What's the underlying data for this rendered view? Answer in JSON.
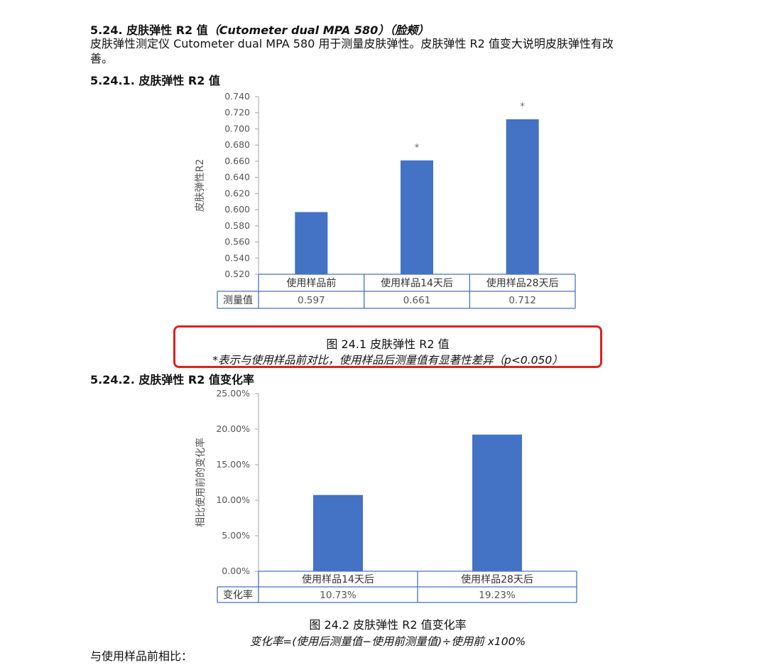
{
  "section": {
    "number": "5.24.",
    "title_cn": "皮肤弹性 R2 值",
    "title_instrument": "（Cutometer dual MPA 580）",
    "title_area": "（脸颊）"
  },
  "intro": {
    "line1": "皮肤弹性测定仪 Cutometer dual MPA 580 用于测量皮肤弹性。皮肤弹性 R2 值变大说明皮肤弹性有改",
    "line2": "善。"
  },
  "subsection1": {
    "number": "5.24.1.",
    "title": "皮肤弹性 R2 值"
  },
  "subsection2": {
    "number": "5.24.2.",
    "title": "皮肤弹性 R2 值变化率"
  },
  "figure1": {
    "caption": "图 24.1 皮肤弹性 R2 值",
    "note": "*表示与使用样品前对比，使用样品后测量值有显著性差异（p<0.050）"
  },
  "figure2": {
    "caption": "图 24.2 皮肤弹性 R2 值变化率",
    "formula": "变化率=(使用后测量值−使用前测量值)÷使用前 x100%"
  },
  "footer_text": "与使用样品前相比：",
  "colors": {
    "bar": "#4472c4",
    "highlight_box": "#e02020",
    "axis": "#a6a6a6",
    "table_border": "#4472c4"
  },
  "chart_data": [
    {
      "type": "bar",
      "ylabel": "皮肤弹性R2",
      "ylim": [
        0.52,
        0.74
      ],
      "ytick_step": 0.02,
      "ytick_labels": [
        "0.520",
        "0.540",
        "0.560",
        "0.580",
        "0.600",
        "0.620",
        "0.640",
        "0.660",
        "0.680",
        "0.700",
        "0.720",
        "0.740"
      ],
      "categories": [
        "使用样品前",
        "使用样品14天后",
        "使用样品28天后"
      ],
      "values": [
        0.597,
        0.661,
        0.712
      ],
      "markers": [
        "",
        "*",
        "*"
      ],
      "table_row_label": "测量值",
      "table_values": [
        "0.597",
        "0.661",
        "0.712"
      ],
      "grid": false
    },
    {
      "type": "bar",
      "ylabel": "相比使用前的变化率",
      "ylim": [
        0,
        25
      ],
      "ytick_labels": [
        "0.00%",
        "5.00%",
        "10.00%",
        "15.00%",
        "20.00%",
        "25.00%"
      ],
      "categories": [
        "使用样品14天后",
        "使用样品28天后"
      ],
      "values": [
        10.73,
        19.23
      ],
      "table_row_label": "变化率",
      "table_values": [
        "10.73%",
        "19.23%"
      ],
      "grid": false
    }
  ]
}
